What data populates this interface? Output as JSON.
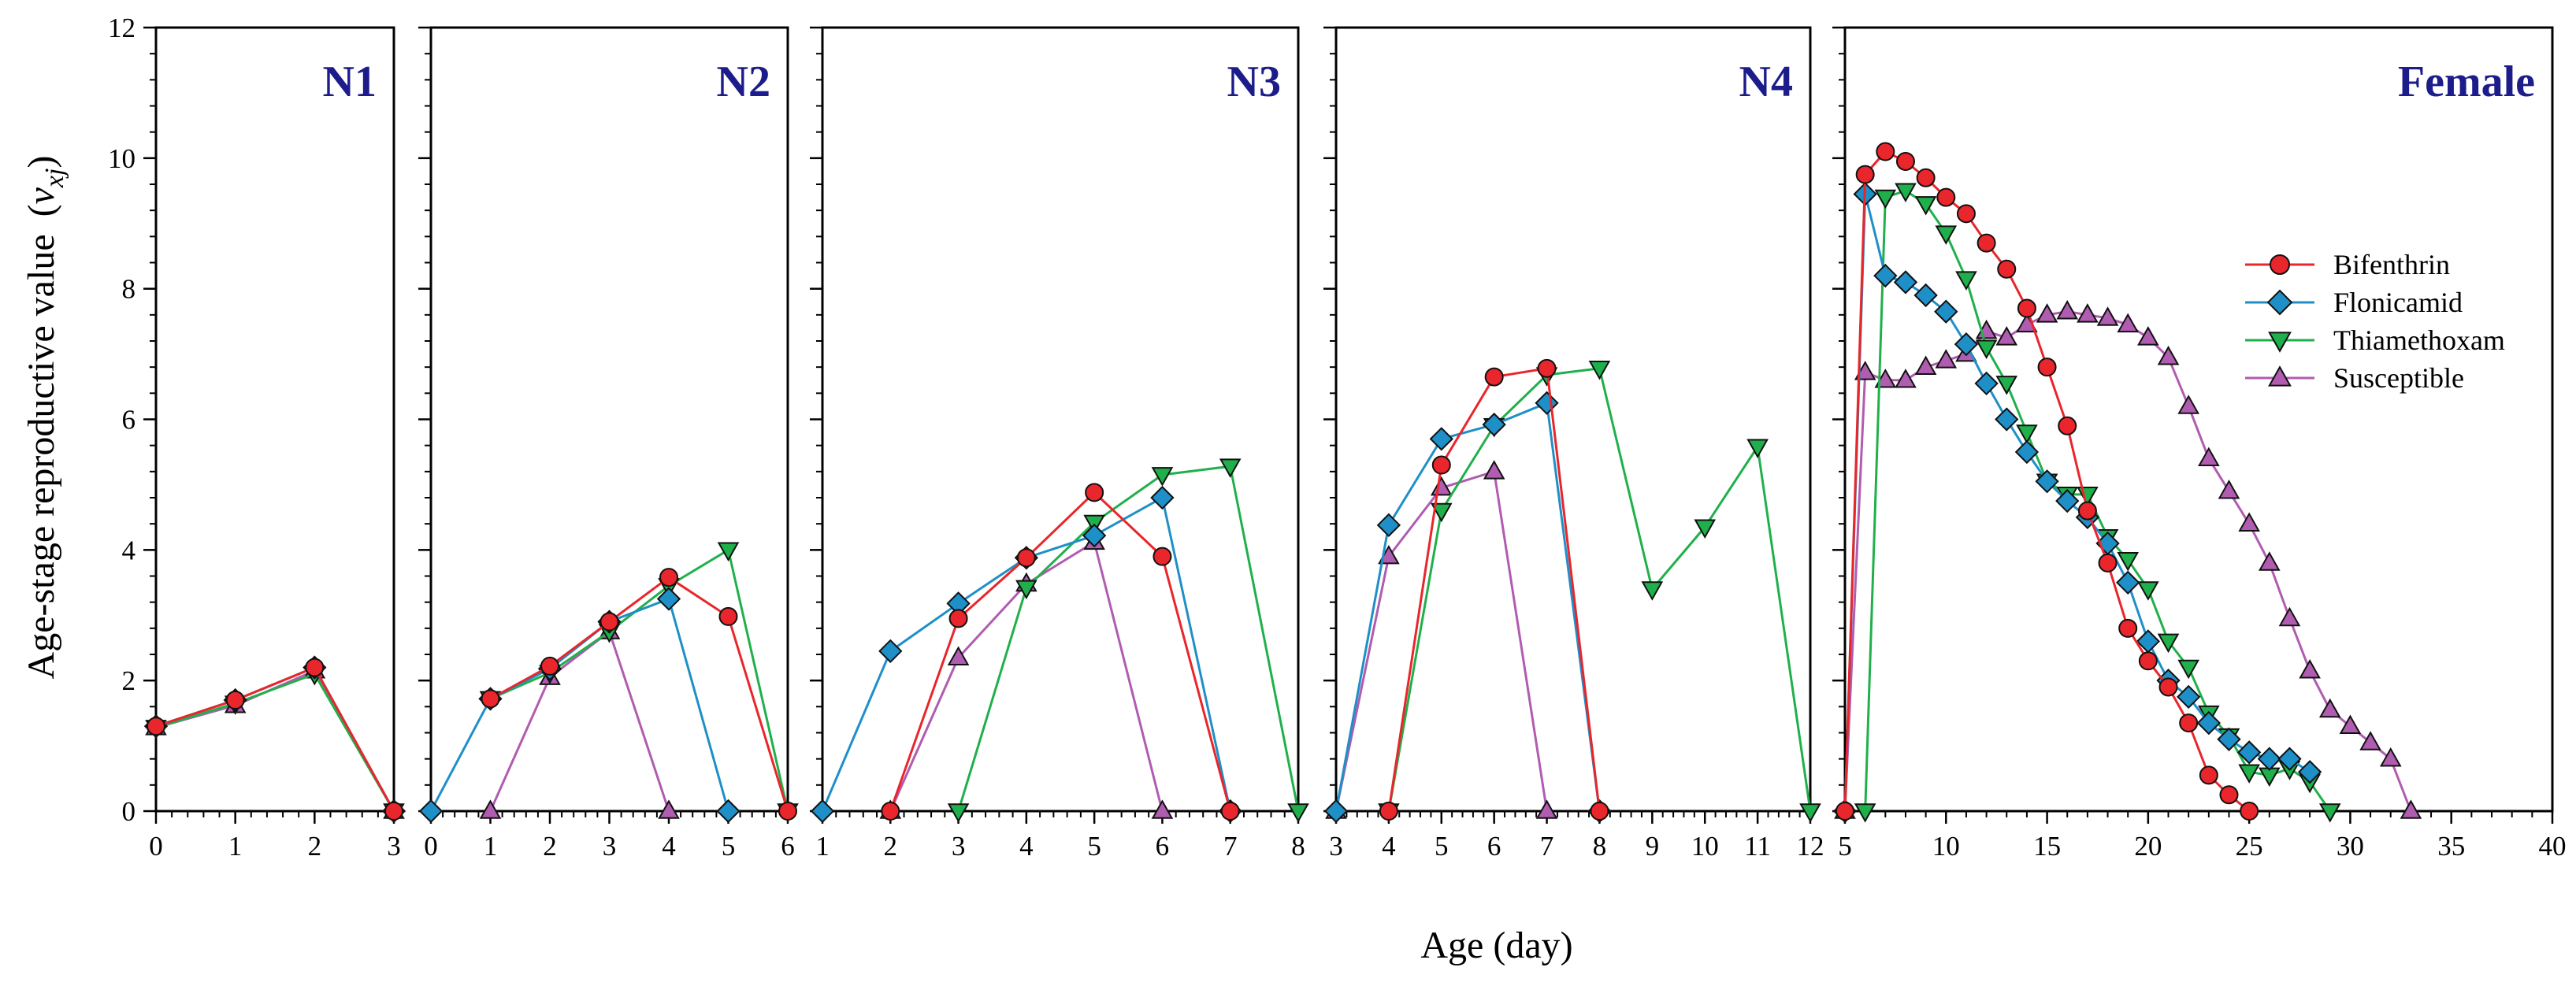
{
  "chart_data": {
    "type": "line",
    "ylabel": "Age-stage reproductive value",
    "ylabel_symbol": "v",
    "ylabel_subscript": "xj",
    "xlabel": "Age (day)",
    "ylim": [
      0,
      12
    ],
    "yticks": [
      "0",
      "2",
      "4",
      "6",
      "8",
      "10",
      "12"
    ],
    "colors": {
      "Bifenthrin": "#e8262b",
      "Flonicamid": "#1f8fc8",
      "Thiamethoxam": "#20b04b",
      "Susceptible": "#b05cb0"
    },
    "legend": {
      "placement": "upper-right of Female panel",
      "entries": [
        "Bifenthrin",
        "Flonicamid",
        "Thiamethoxam",
        "Susceptible"
      ]
    },
    "panels": [
      {
        "title": "N1",
        "xlim": [
          0,
          3
        ],
        "xticks": [
          "0",
          "1",
          "2",
          "3"
        ],
        "series": [
          {
            "name": "Bifenthrin",
            "x": [
              0,
              1,
              2,
              3
            ],
            "y": [
              1.3,
              1.7,
              2.2,
              0
            ]
          },
          {
            "name": "Flonicamid",
            "x": [
              0,
              1,
              2,
              3
            ],
            "y": [
              1.3,
              1.7,
              2.2,
              0
            ]
          },
          {
            "name": "Thiamethoxam",
            "x": [
              0,
              1,
              2,
              3
            ],
            "y": [
              1.28,
              1.65,
              2.1,
              0
            ]
          },
          {
            "name": "Susceptible",
            "x": [
              0,
              1,
              2,
              3
            ],
            "y": [
              1.28,
              1.62,
              2.15,
              0
            ]
          }
        ]
      },
      {
        "title": "N2",
        "xlim": [
          0,
          6
        ],
        "xticks": [
          "0",
          "1",
          "2",
          "3",
          "4",
          "5",
          "6"
        ],
        "series": [
          {
            "name": "Bifenthrin",
            "x": [
              1,
              2,
              3,
              4,
              5,
              6
            ],
            "y": [
              1.72,
              2.22,
              2.9,
              3.58,
              2.98,
              0
            ]
          },
          {
            "name": "Flonicamid",
            "x": [
              0,
              1,
              2,
              3,
              4,
              5
            ],
            "y": [
              0,
              1.72,
              2.18,
              2.9,
              3.25,
              0
            ]
          },
          {
            "name": "Thiamethoxam",
            "x": [
              1,
              2,
              3,
              4,
              5,
              6
            ],
            "y": [
              1.72,
              2.12,
              2.75,
              3.45,
              4.0,
              0
            ]
          },
          {
            "name": "Susceptible",
            "x": [
              1,
              2,
              3,
              4
            ],
            "y": [
              0,
              2.05,
              2.75,
              0
            ]
          }
        ]
      },
      {
        "title": "N3",
        "xlim": [
          1,
          8
        ],
        "xticks": [
          "1",
          "2",
          "3",
          "4",
          "5",
          "6",
          "7",
          "8"
        ],
        "series": [
          {
            "name": "Bifenthrin",
            "x": [
              2,
              3,
              4,
              5,
              6,
              7
            ],
            "y": [
              0,
              2.95,
              3.88,
              4.88,
              3.9,
              0
            ]
          },
          {
            "name": "Flonicamid",
            "x": [
              1,
              2,
              3,
              4,
              5,
              6,
              7
            ],
            "y": [
              0,
              2.45,
              3.18,
              3.88,
              4.22,
              4.8,
              0
            ]
          },
          {
            "name": "Thiamethoxam",
            "x": [
              3,
              4,
              5,
              6,
              7,
              8
            ],
            "y": [
              0,
              3.42,
              4.42,
              5.15,
              5.28,
              0
            ]
          },
          {
            "name": "Susceptible",
            "x": [
              2,
              3,
              4,
              5,
              6
            ],
            "y": [
              0,
              2.35,
              3.48,
              4.12,
              0
            ]
          }
        ]
      },
      {
        "title": "N4",
        "xlim": [
          3,
          12
        ],
        "xticks": [
          "3",
          "4",
          "5",
          "6",
          "7",
          "8",
          "9",
          "10",
          "11",
          "12"
        ],
        "series": [
          {
            "name": "Bifenthrin",
            "x": [
              4,
              5,
              6,
              7,
              8
            ],
            "y": [
              0,
              5.3,
              6.65,
              6.78,
              0
            ]
          },
          {
            "name": "Flonicamid",
            "x": [
              3,
              4,
              5,
              6,
              7,
              8
            ],
            "y": [
              0,
              4.38,
              5.7,
              5.92,
              6.25,
              0
            ]
          },
          {
            "name": "Thiamethoxam",
            "x": [
              4,
              5,
              6,
              7,
              8,
              9,
              10,
              11,
              12
            ],
            "y": [
              0,
              4.6,
              5.9,
              6.68,
              6.78,
              3.4,
              4.35,
              5.58,
              0
            ]
          },
          {
            "name": "Susceptible",
            "x": [
              3,
              4,
              5,
              6,
              7
            ],
            "y": [
              0,
              3.9,
              4.95,
              5.2,
              0
            ]
          }
        ]
      },
      {
        "title": "Female",
        "xlim": [
          5,
          40
        ],
        "xticks": [
          "5",
          "10",
          "15",
          "20",
          "25",
          "30",
          "35",
          "40"
        ],
        "series": [
          {
            "name": "Bifenthrin",
            "x": [
              5,
              6,
              7,
              8,
              9,
              10,
              11,
              12,
              13,
              14,
              15,
              16,
              17,
              18,
              19,
              20,
              21,
              22,
              23,
              24,
              25
            ],
            "y": [
              0,
              9.75,
              10.1,
              9.95,
              9.7,
              9.4,
              9.15,
              8.7,
              8.3,
              7.7,
              6.8,
              5.9,
              4.6,
              3.8,
              2.8,
              2.3,
              1.9,
              1.35,
              0.55,
              0.25,
              0
            ]
          },
          {
            "name": "Flonicamid",
            "x": [
              5,
              6,
              7,
              8,
              9,
              10,
              11,
              12,
              13,
              14,
              15,
              16,
              17,
              18,
              19,
              20,
              21,
              22,
              23,
              24,
              25,
              26,
              27,
              28
            ],
            "y": [
              0,
              9.45,
              8.2,
              8.1,
              7.9,
              7.65,
              7.15,
              6.55,
              6.0,
              5.5,
              5.05,
              4.75,
              4.5,
              4.1,
              3.5,
              2.6,
              2.0,
              1.75,
              1.35,
              1.1,
              0.9,
              0.8,
              0.8,
              0.6
            ]
          },
          {
            "name": "Thiamethoxam",
            "x": [
              6,
              7,
              8,
              9,
              10,
              11,
              12,
              13,
              14,
              15,
              16,
              17,
              18,
              19,
              20,
              21,
              22,
              23,
              24,
              25,
              26,
              27,
              28,
              29
            ],
            "y": [
              0,
              9.4,
              9.5,
              9.3,
              8.85,
              8.15,
              7.1,
              6.55,
              5.8,
              5.05,
              4.85,
              4.85,
              4.2,
              3.85,
              3.4,
              2.6,
              2.2,
              1.5,
              1.15,
              0.6,
              0.55,
              0.65,
              0.45,
              0
            ]
          },
          {
            "name": "Susceptible",
            "x": [
              5,
              6,
              7,
              8,
              9,
              10,
              11,
              12,
              13,
              14,
              15,
              16,
              17,
              18,
              19,
              20,
              21,
              22,
              23,
              24,
              25,
              26,
              27,
              28,
              29,
              30,
              31,
              32,
              33
            ],
            "y": [
              0,
              6.72,
              6.6,
              6.6,
              6.8,
              6.9,
              7.0,
              7.35,
              7.25,
              7.45,
              7.6,
              7.65,
              7.6,
              7.55,
              7.45,
              7.25,
              6.95,
              6.2,
              5.4,
              4.9,
              4.4,
              3.8,
              2.95,
              2.15,
              1.55,
              1.3,
              1.05,
              0.8,
              0
            ]
          }
        ]
      }
    ]
  }
}
